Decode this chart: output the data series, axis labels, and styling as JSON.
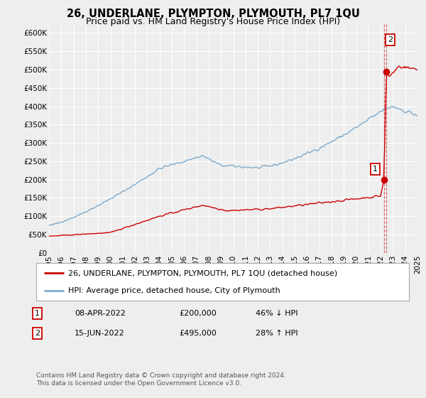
{
  "title": "26, UNDERLANE, PLYMPTON, PLYMOUTH, PL7 1QU",
  "subtitle": "Price paid vs. HM Land Registry's House Price Index (HPI)",
  "ylabel_ticks": [
    "£0",
    "£50K",
    "£100K",
    "£150K",
    "£200K",
    "£250K",
    "£300K",
    "£350K",
    "£400K",
    "£450K",
    "£500K",
    "£550K",
    "£600K"
  ],
  "ytick_values": [
    0,
    50000,
    100000,
    150000,
    200000,
    250000,
    300000,
    350000,
    400000,
    450000,
    500000,
    550000,
    600000
  ],
  "ylim": [
    0,
    625000
  ],
  "xlim_left": 1995,
  "xlim_right": 2025,
  "background_color": "#eeeeee",
  "plot_bg_color": "#eeeeee",
  "grid_color": "#ffffff",
  "red_line_color": "#cc0000",
  "blue_line_color": "#7eaacc",
  "marker1_x": 2022.27,
  "marker1_y": 200000,
  "marker2_x": 2022.46,
  "marker2_y": 495000,
  "legend_label_red": "26, UNDERLANE, PLYMPTON, PLYMOUTH, PL7 1QU (detached house)",
  "legend_label_blue": "HPI: Average price, detached house, City of Plymouth",
  "table_row1": [
    "1",
    "08-APR-2022",
    "£200,000",
    "46% ↓ HPI"
  ],
  "table_row2": [
    "2",
    "15-JUN-2022",
    "£495,000",
    "28% ↑ HPI"
  ],
  "footer": "Contains HM Land Registry data © Crown copyright and database right 2024.\nThis data is licensed under the Open Government Licence v3.0.",
  "title_fontsize": 10.5,
  "subtitle_fontsize": 9,
  "tick_fontsize": 7.5,
  "legend_fontsize": 8,
  "table_fontsize": 8,
  "footer_fontsize": 6.5
}
